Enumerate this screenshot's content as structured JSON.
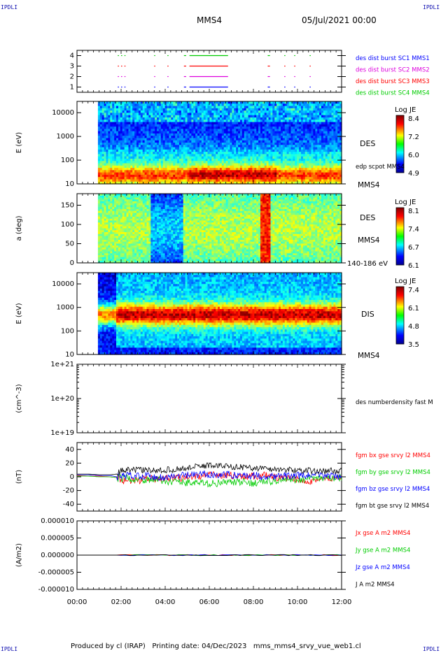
{
  "header": {
    "corner_tl": "IPDLI",
    "corner_tr": "IPDLI",
    "corner_bl": "IPDLI",
    "corner_br": "IPDLI",
    "spacecraft": "MMS4",
    "date": "05/Jul/2021 00:00"
  },
  "footer": {
    "produced_by": "Produced by cl (IRAP)",
    "printing_date": "Printing date: 04/Dec/2023",
    "script_name": "mms_mms4_srvy_vue_web1.cl"
  },
  "time_axis": {
    "ticks": [
      "00:00",
      "02:00",
      "04:00",
      "06:00",
      "08:00",
      "10:00",
      "12:00"
    ],
    "range_hours": [
      0,
      12
    ]
  },
  "colors": {
    "blue": "#0000ff",
    "magenta": "#dd00dd",
    "red": "#ff0000",
    "green": "#00cc00",
    "black": "#000000"
  },
  "chart_data": [
    {
      "type": "scatter",
      "panel": "burst",
      "yticks": [
        "1",
        "2",
        "3",
        "4"
      ],
      "ylim": [
        0.5,
        4.5
      ],
      "series": [
        {
          "name": "des dist burst SC1 MMS1",
          "color": "#0000ff",
          "y": 1
        },
        {
          "name": "des dist burst SC2 MMS2",
          "color": "#dd00dd",
          "y": 2
        },
        {
          "name": "des dist burst SC3 MMS3",
          "color": "#ff0000",
          "y": 3
        },
        {
          "name": "des dist burst SC4 MMS4",
          "color": "#00cc00",
          "y": 4
        }
      ],
      "intervals_hours": [
        [
          1.85,
          1.9
        ],
        [
          2.0,
          2.05
        ],
        [
          2.15,
          2.2
        ],
        [
          3.5,
          3.55
        ],
        [
          4.1,
          4.15
        ],
        [
          4.85,
          4.95
        ],
        [
          5.1,
          6.85
        ],
        [
          8.65,
          8.75
        ],
        [
          9.4,
          9.45
        ],
        [
          9.85,
          9.9
        ],
        [
          10.55,
          10.6
        ]
      ]
    },
    {
      "type": "heatmap",
      "panel": "des_energy",
      "ylabel": "E (eV)",
      "yticks": [
        "10",
        "100",
        "1000",
        "10000"
      ],
      "ylim": [
        10,
        30000
      ],
      "log_y": true,
      "colorbar_label": "Log JE",
      "colorbar_ticks": [
        "8.4",
        "7.2",
        "6.0",
        "4.9"
      ],
      "right_labels": [
        "DES",
        "edp scpot MMS4",
        "MMS4"
      ]
    },
    {
      "type": "heatmap",
      "panel": "des_pitch",
      "ylabel": "a (deg)",
      "yticks": [
        "0",
        "50",
        "100",
        "150"
      ],
      "ylim": [
        0,
        180
      ],
      "colorbar_label": "Log JE",
      "colorbar_ticks": [
        "8.1",
        "7.4",
        "6.7",
        "6.1"
      ],
      "right_labels": [
        "DES",
        "MMS4",
        "140-186 eV"
      ]
    },
    {
      "type": "heatmap",
      "panel": "dis_energy",
      "ylabel": "E (eV)",
      "yticks": [
        "10",
        "100",
        "1000",
        "10000"
      ],
      "ylim": [
        10,
        30000
      ],
      "log_y": true,
      "colorbar_label": "Log JE",
      "colorbar_ticks": [
        "7.4",
        "6.1",
        "4.8",
        "3.5"
      ],
      "right_labels": [
        "DIS",
        "MMS4"
      ]
    },
    {
      "type": "line",
      "panel": "density",
      "ylabel": "(cm^-3)",
      "yticks": [
        "1e+19",
        "1e+20",
        "1e+21"
      ],
      "ylim": [
        1e+19,
        1e+21
      ],
      "log_y": true,
      "series": [
        {
          "name": "des numberdensity fast M",
          "color": "#000000",
          "values": []
        }
      ]
    },
    {
      "type": "line",
      "panel": "fgm",
      "ylabel": "(nT)",
      "yticks": [
        "-40",
        "-20",
        "0",
        "20",
        "40"
      ],
      "ylim": [
        -50,
        50
      ],
      "x_hours": [
        0,
        0.5,
        1,
        1.5,
        1.8,
        2,
        2.5,
        3,
        3.5,
        4,
        4.5,
        5,
        5.5,
        6,
        6.5,
        7,
        7.5,
        8,
        8.5,
        9,
        9.5,
        10,
        10.5,
        11,
        11.5,
        12
      ],
      "series": [
        {
          "name": "fgm bx gse srvy l2 MMS4",
          "color": "#ff0000",
          "values": [
            2,
            1,
            1,
            0,
            -1,
            -5,
            -6,
            -4,
            -3,
            -1,
            -2,
            0,
            1,
            2,
            3,
            2,
            0,
            1,
            2,
            -1,
            -3,
            -4,
            -6,
            -4,
            -3,
            -2
          ]
        },
        {
          "name": "fgm by gse srvy l2 MMS4",
          "color": "#00cc00",
          "values": [
            1,
            1,
            0,
            0,
            -1,
            -2,
            -3,
            -4,
            -4,
            -6,
            -7,
            -8,
            -9,
            -10,
            -9,
            -8,
            -8,
            -9,
            -7,
            -6,
            -5,
            -4,
            -3,
            -3,
            -2,
            -2
          ]
        },
        {
          "name": "fgm bz gse srvy l2 MMS4",
          "color": "#0000ff",
          "values": [
            3,
            3,
            2,
            2,
            0,
            1,
            2,
            2,
            0,
            -1,
            1,
            2,
            3,
            4,
            3,
            3,
            2,
            2,
            1,
            1,
            1,
            2,
            2,
            2,
            2,
            1
          ]
        },
        {
          "name": "fgm bt gse srvy l2 MMS4",
          "color": "#000000",
          "values": [
            4,
            4,
            3,
            3,
            4,
            9,
            10,
            10,
            9,
            10,
            11,
            13,
            15,
            17,
            16,
            15,
            14,
            13,
            12,
            11,
            10,
            10,
            9,
            8,
            9,
            9
          ]
        }
      ]
    },
    {
      "type": "line",
      "panel": "current",
      "ylabel": "(A/m2)",
      "yticks": [
        "-0.000010",
        "-0.000005",
        "0.000000",
        "0.000005",
        "0.000010"
      ],
      "ylim": [
        -1e-05,
        1e-05
      ],
      "series": [
        {
          "name": "Jx gse A m2 MMS4",
          "color": "#ff0000",
          "values": [
            0,
            0,
            0,
            0,
            0
          ]
        },
        {
          "name": "Jy gse A m2 MMS4",
          "color": "#00cc00",
          "values": [
            0,
            0,
            0,
            0,
            0
          ]
        },
        {
          "name": "Jz gse A m2 MMS4",
          "color": "#0000ff",
          "values": [
            0,
            0,
            0,
            0,
            0
          ]
        },
        {
          "name": "J A m2 MMS4",
          "color": "#000000",
          "values": [
            0,
            0,
            0,
            0,
            0
          ]
        }
      ]
    }
  ]
}
